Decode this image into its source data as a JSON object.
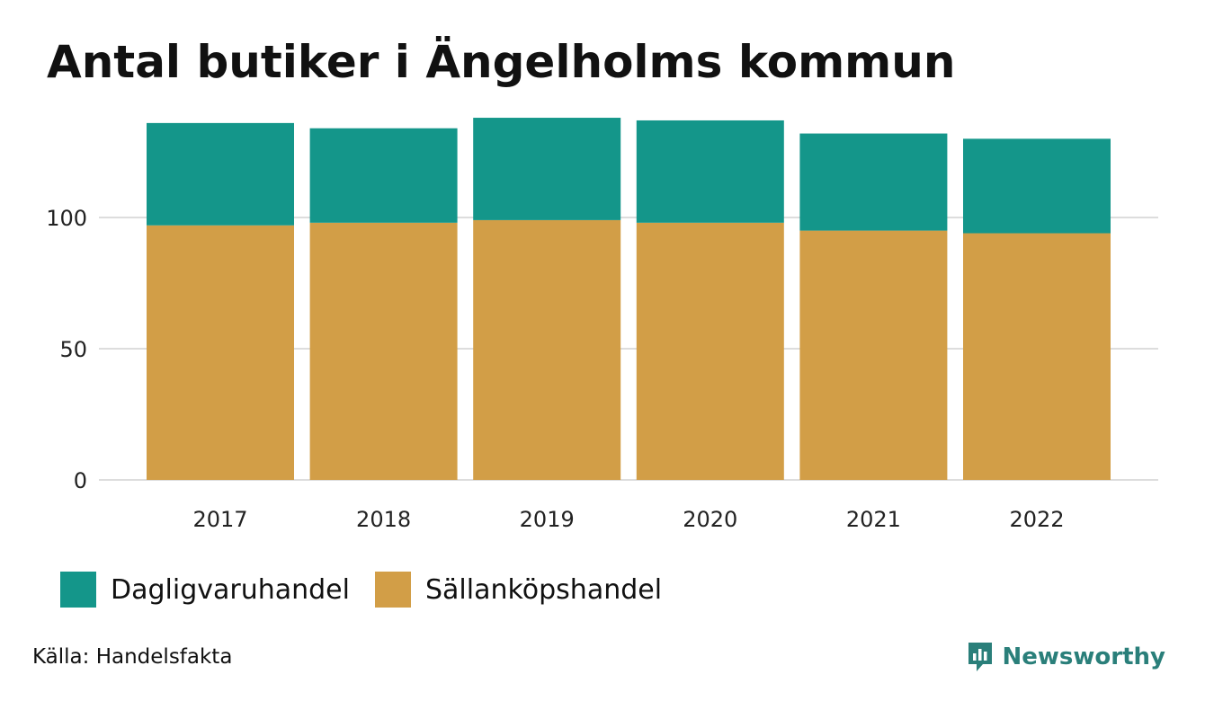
{
  "title": "Antal butiker i Ängelholms kommun",
  "source": "Källa: Handelsfakta",
  "brand": {
    "name": "Newsworthy",
    "icon": "newsworthy-logo-icon",
    "color": "#2a7f7a"
  },
  "colors": {
    "dagligvaruhandel": "#14968a",
    "sallankopshandel": "#d29e47",
    "grid": "#dddddd"
  },
  "chart_data": {
    "type": "bar",
    "stacked": true,
    "categories": [
      "2017",
      "2018",
      "2019",
      "2020",
      "2021",
      "2022"
    ],
    "series": [
      {
        "name": "Sällanköpshandel",
        "values": [
          97,
          98,
          99,
          98,
          95,
          94
        ]
      },
      {
        "name": "Dagligvaruhandel",
        "values": [
          39,
          36,
          39,
          39,
          37,
          36
        ]
      }
    ],
    "yticks": [
      0,
      50,
      100
    ],
    "ylim": [
      0,
      140
    ],
    "grid": true,
    "legend": "bottom-left",
    "xlabel": "",
    "ylabel": ""
  }
}
